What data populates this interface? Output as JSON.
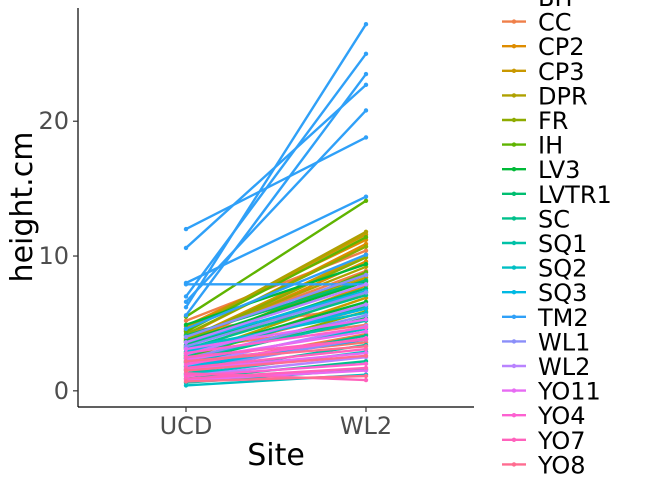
{
  "chart_data": {
    "type": "line",
    "title": "",
    "xlabel": "Site",
    "ylabel": "height.cm",
    "categories": [
      "UCD",
      "WL2"
    ],
    "ylim": [
      -1.2,
      28.4
    ],
    "yticks": [
      0,
      10,
      20
    ],
    "grid": false,
    "legend_position": "right",
    "series": [
      {
        "name": "BH",
        "color": "#F8766D",
        "lines": [
          [
            4.4,
            6.2
          ],
          [
            3.1,
            4.9
          ],
          [
            2.2,
            3.6
          ]
        ]
      },
      {
        "name": "CC",
        "color": "#EF7F49",
        "lines": [
          [
            5.2,
            10.4
          ],
          [
            3.9,
            8.9
          ],
          [
            2.7,
            6.1
          ],
          [
            1.8,
            4.2
          ]
        ]
      },
      {
        "name": "CP2",
        "color": "#DE8C00",
        "lines": [
          [
            4.8,
            11.2
          ],
          [
            3.6,
            9.6
          ],
          [
            2.9,
            7.8
          ],
          [
            4.1,
            10.9
          ]
        ]
      },
      {
        "name": "CP3",
        "color": "#C99800",
        "lines": [
          [
            4.6,
            11.6
          ],
          [
            3.3,
            8.4
          ],
          [
            2.4,
            6.9
          ],
          [
            3.8,
            10.1
          ]
        ]
      },
      {
        "name": "DPR",
        "color": "#AFA100",
        "lines": [
          [
            3.9,
            9.2
          ],
          [
            4.5,
            11.8
          ],
          [
            2.6,
            7.3
          ]
        ]
      },
      {
        "name": "FR",
        "color": "#8EAB00",
        "lines": [
          [
            4.2,
            10.7
          ],
          [
            3.4,
            8.6
          ],
          [
            2.1,
            5.9
          ],
          [
            3.7,
            9.9
          ]
        ]
      },
      {
        "name": "IH",
        "color": "#5FB400",
        "lines": [
          [
            5.5,
            14.1
          ],
          [
            4.4,
            11.4
          ],
          [
            3.2,
            8.8
          ],
          [
            2.5,
            6.4
          ]
        ]
      },
      {
        "name": "LV3",
        "color": "#00BA38",
        "lines": [
          [
            3.7,
            8.1
          ],
          [
            2.8,
            6.6
          ],
          [
            4.9,
            9.4
          ]
        ]
      },
      {
        "name": "LVTR1",
        "color": "#00BE70",
        "lines": [
          [
            3.4,
            7.6
          ],
          [
            2.2,
            5.4
          ],
          [
            4.1,
            8.2
          ]
        ]
      },
      {
        "name": "SC",
        "color": "#00C08B",
        "lines": [
          [
            2.6,
            6.3
          ],
          [
            1.6,
            4.1
          ],
          [
            3.1,
            7.1
          ],
          [
            0.9,
            2.2
          ]
        ]
      },
      {
        "name": "SQ1",
        "color": "#00C1A7",
        "lines": [
          [
            2.4,
            5.2
          ],
          [
            1.3,
            3.4
          ],
          [
            0.6,
            1.6
          ]
        ]
      },
      {
        "name": "SQ2",
        "color": "#00BFC4",
        "lines": [
          [
            2.1,
            4.6
          ],
          [
            1.2,
            2.9
          ],
          [
            3.2,
            5.8
          ],
          [
            0.4,
            1.2
          ]
        ]
      },
      {
        "name": "SQ3",
        "color": "#00B9E3",
        "lines": [
          [
            2.9,
            6.1
          ],
          [
            1.8,
            3.8
          ],
          [
            3.6,
            7.4
          ]
        ]
      },
      {
        "name": "TM2",
        "color": "#2FA0F8",
        "lines": [
          [
            12.0,
            18.8
          ],
          [
            10.6,
            22.7
          ],
          [
            8.0,
            14.4
          ],
          [
            7.0,
            25.0
          ],
          [
            6.2,
            27.2
          ],
          [
            5.6,
            23.5
          ],
          [
            6.6,
            20.8
          ],
          [
            7.9,
            7.9
          ],
          [
            4.6,
            10.1
          ]
        ]
      },
      {
        "name": "WL1",
        "color": "#8A8EF9",
        "lines": [
          [
            3.3,
            7.3
          ],
          [
            2.4,
            5.6
          ],
          [
            1.5,
            3.9
          ],
          [
            4.0,
            8.6
          ]
        ]
      },
      {
        "name": "WL2",
        "color": "#B983FF",
        "lines": [
          [
            2.7,
            6.4
          ],
          [
            3.6,
            7.9
          ],
          [
            1.9,
            4.8
          ],
          [
            1.1,
            2.5
          ]
        ]
      },
      {
        "name": "YO11",
        "color": "#E76BF3",
        "lines": [
          [
            2.3,
            4.4
          ],
          [
            1.6,
            2.8
          ],
          [
            3.1,
            5.3
          ],
          [
            0.8,
            1.5
          ]
        ]
      },
      {
        "name": "YO4",
        "color": "#FD61D1",
        "lines": [
          [
            2.0,
            3.9
          ],
          [
            1.1,
            2.0
          ],
          [
            2.8,
            4.7
          ]
        ]
      },
      {
        "name": "YO7",
        "color": "#FF62BC",
        "lines": [
          [
            1.7,
            3.1
          ],
          [
            0.9,
            1.7
          ],
          [
            2.5,
            3.8
          ],
          [
            1.3,
            0.8
          ]
        ]
      },
      {
        "name": "YO8",
        "color": "#FF6C90",
        "lines": [
          [
            1.5,
            2.6
          ],
          [
            2.2,
            3.3
          ],
          [
            0.7,
            1.1
          ]
        ]
      }
    ]
  }
}
